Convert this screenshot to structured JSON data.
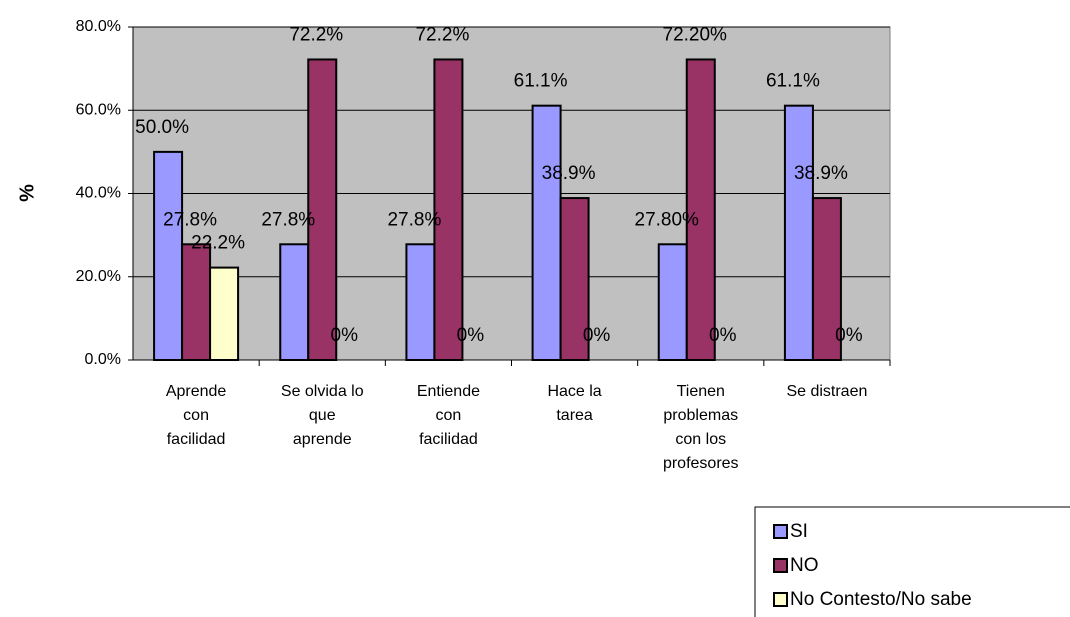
{
  "chart_data": {
    "type": "bar",
    "categories": [
      "Aprende con facilidad",
      "Se olvida lo que aprende",
      "Entiende con facilidad",
      "Hace la tarea",
      "Tienen problemas con los profesores",
      "Se distraen"
    ],
    "series": [
      {
        "name": "SI",
        "color": "#9999ff",
        "values": [
          50.0,
          27.8,
          27.8,
          61.1,
          27.8,
          61.1
        ],
        "value_labels": [
          "50.0%",
          "27.8%",
          "27.8%",
          "61.1%",
          "27.80%",
          "61.1%"
        ]
      },
      {
        "name": "NO",
        "color": "#993366",
        "values": [
          27.8,
          72.2,
          72.2,
          38.9,
          72.2,
          38.9
        ],
        "value_labels": [
          "27.8%",
          "72.2%",
          "72.2%",
          "38.9%",
          "72.20%",
          "38.9%"
        ]
      },
      {
        "name": "No Contesto/No sabe",
        "color": "#ffffcc",
        "values": [
          22.2,
          0,
          0,
          0,
          0,
          0
        ],
        "value_labels": [
          "22.2%",
          "0%",
          "0%",
          "0%",
          "0%",
          "0%"
        ]
      }
    ],
    "y_label": "%",
    "ylim": [
      0,
      80
    ],
    "yticks": [
      {
        "value": 0,
        "label": "0.0%"
      },
      {
        "value": 20,
        "label": "20.0%"
      },
      {
        "value": 40,
        "label": "40.0%"
      },
      {
        "value": 60,
        "label": "60.0%"
      },
      {
        "value": 80,
        "label": "80.0%"
      }
    ],
    "grid": true,
    "legend": "bottom-right"
  }
}
